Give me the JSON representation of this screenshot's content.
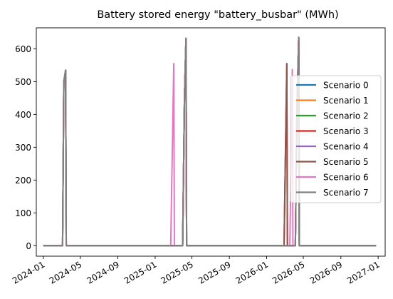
{
  "chart_data": {
    "type": "line",
    "title": "Battery stored energy \"battery_busbar\" (MWh)",
    "xlabel": "",
    "ylabel": "",
    "x_range": [
      "2023-12-09",
      "2027-01-24"
    ],
    "ylim": [
      -32,
      664
    ],
    "grid": false,
    "legend_position": "center-right",
    "y_ticks": [
      0,
      100,
      200,
      300,
      400,
      500,
      600
    ],
    "x_ticks": [
      {
        "date": "2024-01-01",
        "label": "2024-01"
      },
      {
        "date": "2024-05-01",
        "label": "2024-05"
      },
      {
        "date": "2024-09-01",
        "label": "2024-09"
      },
      {
        "date": "2025-01-01",
        "label": "2025-01"
      },
      {
        "date": "2025-05-01",
        "label": "2025-05"
      },
      {
        "date": "2025-09-01",
        "label": "2025-09"
      },
      {
        "date": "2026-01-01",
        "label": "2026-01"
      },
      {
        "date": "2026-05-01",
        "label": "2026-05"
      },
      {
        "date": "2026-09-01",
        "label": "2026-09"
      },
      {
        "date": "2027-01-01",
        "label": "2027-01"
      }
    ],
    "series": [
      {
        "name": "Scenario 0",
        "color": "#1f77b4",
        "x": [
          "2024-01-01",
          "2024-03-04",
          "2024-03-08",
          "2024-03-14",
          "2024-03-16",
          "2025-04-01",
          "2025-04-07",
          "2025-04-12",
          "2025-04-14",
          "2026-04-05",
          "2026-04-10",
          "2026-04-16",
          "2026-04-18",
          "2026-12-25"
        ],
        "y": [
          0,
          0,
          500,
          535,
          0,
          0,
          450,
          632,
          0,
          0,
          400,
          635,
          0,
          0
        ]
      },
      {
        "name": "Scenario 1",
        "color": "#ff7f0e",
        "x": [
          "2024-01-01",
          "2024-03-04",
          "2024-03-08",
          "2024-03-14",
          "2024-03-16",
          "2025-04-01",
          "2025-04-07",
          "2025-04-12",
          "2025-04-14",
          "2026-04-05",
          "2026-04-10",
          "2026-04-16",
          "2026-04-18",
          "2026-12-25"
        ],
        "y": [
          0,
          0,
          500,
          535,
          0,
          0,
          450,
          632,
          0,
          0,
          400,
          635,
          0,
          0
        ]
      },
      {
        "name": "Scenario 2",
        "color": "#2ca02c",
        "x": [
          "2024-01-01",
          "2024-03-04",
          "2024-03-08",
          "2024-03-14",
          "2024-03-16",
          "2025-04-01",
          "2025-04-07",
          "2025-04-12",
          "2025-04-14",
          "2026-04-05",
          "2026-04-10",
          "2026-04-16",
          "2026-04-18",
          "2026-12-25"
        ],
        "y": [
          0,
          0,
          500,
          535,
          0,
          0,
          450,
          632,
          0,
          0,
          400,
          635,
          0,
          0
        ]
      },
      {
        "name": "Scenario 3",
        "color": "#d62728",
        "x": [
          "2024-01-01",
          "2024-03-04",
          "2024-03-08",
          "2024-03-14",
          "2024-03-16",
          "2025-04-01",
          "2025-04-07",
          "2025-04-12",
          "2025-04-14",
          "2026-02-27",
          "2026-03-08",
          "2026-03-10",
          "2026-04-05",
          "2026-04-10",
          "2026-04-16",
          "2026-04-18",
          "2026-12-25"
        ],
        "y": [
          0,
          0,
          500,
          535,
          0,
          0,
          450,
          632,
          0,
          0,
          555,
          0,
          0,
          400,
          635,
          0,
          0
        ]
      },
      {
        "name": "Scenario 4",
        "color": "#9467bd",
        "x": [
          "2024-01-01",
          "2024-03-04",
          "2024-03-08",
          "2024-03-14",
          "2024-03-16",
          "2025-04-01",
          "2025-04-07",
          "2025-04-12",
          "2025-04-14",
          "2026-04-05",
          "2026-04-10",
          "2026-04-16",
          "2026-04-18",
          "2026-12-25"
        ],
        "y": [
          0,
          0,
          500,
          535,
          0,
          0,
          450,
          632,
          0,
          0,
          400,
          635,
          0,
          0
        ]
      },
      {
        "name": "Scenario 5",
        "color": "#8c564b",
        "x": [
          "2024-01-01",
          "2024-03-04",
          "2024-03-08",
          "2024-03-14",
          "2024-03-16",
          "2025-04-01",
          "2025-04-07",
          "2025-04-12",
          "2025-04-14",
          "2026-02-27",
          "2026-03-08",
          "2026-03-10",
          "2026-04-05",
          "2026-04-10",
          "2026-04-16",
          "2026-04-18",
          "2026-12-25"
        ],
        "y": [
          0,
          0,
          500,
          535,
          0,
          0,
          450,
          632,
          0,
          0,
          555,
          0,
          0,
          400,
          635,
          0,
          0
        ]
      },
      {
        "name": "Scenario 6",
        "color": "#e377c2",
        "x": [
          "2024-01-01",
          "2024-03-04",
          "2024-03-08",
          "2024-03-14",
          "2024-03-16",
          "2025-02-21",
          "2025-03-03",
          "2025-03-05",
          "2025-04-01",
          "2025-04-07",
          "2025-04-12",
          "2025-04-14",
          "2026-03-18",
          "2026-03-26",
          "2026-03-28",
          "2026-04-05",
          "2026-04-10",
          "2026-04-16",
          "2026-04-18",
          "2026-12-25"
        ],
        "y": [
          0,
          0,
          500,
          535,
          0,
          0,
          555,
          0,
          0,
          450,
          632,
          0,
          0,
          537,
          0,
          0,
          400,
          635,
          0,
          0
        ]
      },
      {
        "name": "Scenario 7",
        "color": "#7f7f7f",
        "x": [
          "2024-01-01",
          "2024-03-04",
          "2024-03-08",
          "2024-03-14",
          "2024-03-16",
          "2025-04-01",
          "2025-04-07",
          "2025-04-12",
          "2025-04-14",
          "2026-04-05",
          "2026-04-10",
          "2026-04-16",
          "2026-04-18",
          "2026-12-25"
        ],
        "y": [
          0,
          0,
          500,
          535,
          0,
          0,
          450,
          632,
          0,
          0,
          400,
          635,
          0,
          0
        ]
      }
    ]
  }
}
